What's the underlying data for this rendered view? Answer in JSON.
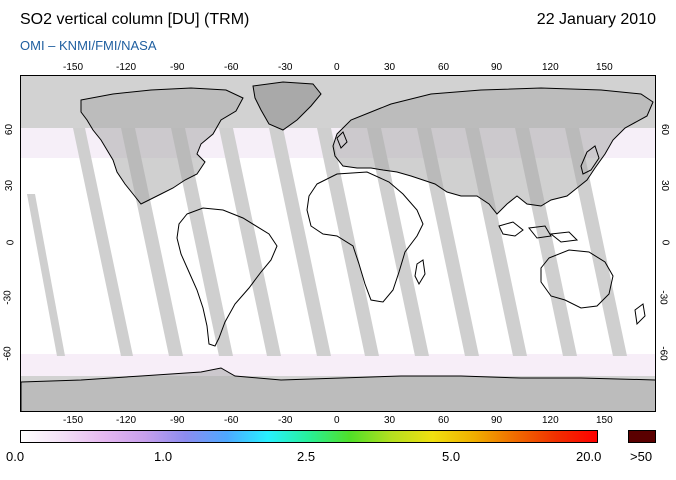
{
  "header": {
    "title": "SO2 vertical column [DU] (TRM)",
    "date": "22 January 2010",
    "credit": "OMI  –  KNMI/FMI/NASA"
  },
  "map": {
    "projection": "equirectangular",
    "lon_ticks": [
      "-150",
      "-120",
      "-90",
      "-60",
      "-30",
      "0",
      "30",
      "60",
      "90",
      "120",
      "150"
    ],
    "lat_ticks": [
      "60",
      "30",
      "0",
      "-30",
      "-60"
    ],
    "colors": {
      "no_data": "#d2d2d2",
      "land_no_data": "#a9a9a9",
      "swath_gap": "#cfcfcf",
      "swath_gap_over_land": "#9d9d9d",
      "coastline": "#000000"
    }
  },
  "colorbar": {
    "labels": [
      "0.0",
      "1.0",
      "2.5",
      "5.0",
      "20.0"
    ],
    "over_label": ">50",
    "over_color": "#5a0000",
    "gradient": [
      "#ffffff",
      "#f3e0f6",
      "#e6b8f0",
      "#c8a0ec",
      "#8c8cf0",
      "#4ea8ff",
      "#28f0ff",
      "#28f098",
      "#50e028",
      "#b4e020",
      "#f0e010",
      "#f0b000",
      "#f06c00",
      "#f03000",
      "#ff0000"
    ]
  }
}
